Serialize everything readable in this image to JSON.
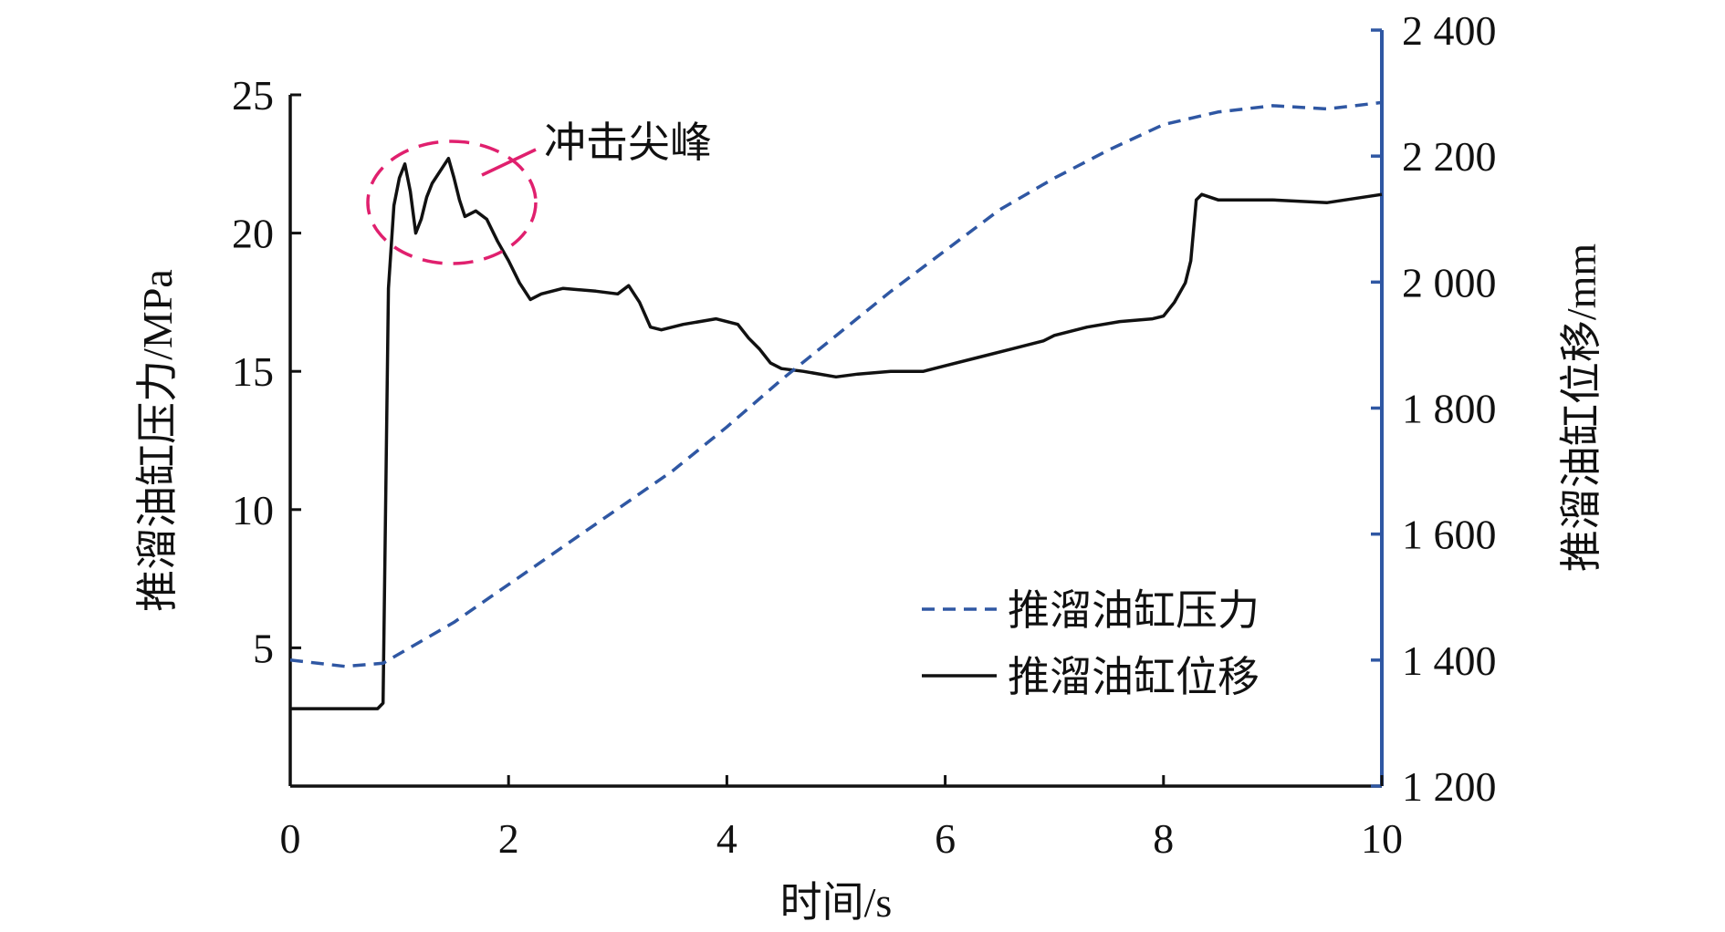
{
  "chart_data": {
    "type": "line",
    "xlabel": "时间/s",
    "ylabel_left": "推溜油缸压力/MPa",
    "ylabel_right": "推溜油缸位移/mm",
    "xlim": [
      0,
      10
    ],
    "ylim_left": [
      0,
      25
    ],
    "ylim_right": [
      1200,
      2400
    ],
    "x_ticks": [
      "0",
      "2",
      "4",
      "6",
      "8",
      "10"
    ],
    "y_ticks_left": [
      "5",
      "10",
      "15",
      "20",
      "25"
    ],
    "y_ticks_right": [
      "1 200",
      "1 400",
      "1 600",
      "1 800",
      "2 000",
      "2 200",
      "2 400"
    ],
    "grid": false,
    "legend_position": "lower-right",
    "annotation": "冲击尖峰",
    "colors": {
      "displacement": "#111111",
      "pressure": "#2F57A3",
      "annotation": "#E0206E",
      "right_axis": "#2F57A3"
    },
    "series": [
      {
        "name": "推溜油缸位移",
        "axis": "left",
        "style": "solid",
        "x": [
          0,
          0.4,
          0.75,
          0.8,
          0.85,
          0.9,
          0.95,
          1.0,
          1.05,
          1.1,
          1.15,
          1.2,
          1.25,
          1.3,
          1.4,
          1.45,
          1.5,
          1.55,
          1.6,
          1.7,
          1.8,
          1.9,
          2.0,
          2.1,
          2.2,
          2.3,
          2.5,
          2.8,
          3.0,
          3.1,
          3.2,
          3.3,
          3.4,
          3.6,
          3.9,
          4.1,
          4.2,
          4.3,
          4.4,
          4.5,
          4.7,
          5.0,
          5.2,
          5.5,
          5.8,
          6.0,
          6.3,
          6.6,
          6.9,
          7.0,
          7.3,
          7.6,
          7.9,
          8.0,
          8.1,
          8.2,
          8.25,
          8.3,
          8.35,
          8.5,
          9.0,
          9.5,
          10.0
        ],
        "y": [
          2.8,
          2.8,
          2.8,
          2.8,
          3.0,
          18.0,
          21.0,
          22.0,
          22.5,
          21.5,
          20.0,
          20.5,
          21.3,
          21.8,
          22.4,
          22.7,
          22.0,
          21.2,
          20.6,
          20.8,
          20.5,
          19.7,
          19.0,
          18.2,
          17.6,
          17.8,
          18.0,
          17.9,
          17.8,
          18.1,
          17.5,
          16.6,
          16.5,
          16.7,
          16.9,
          16.7,
          16.2,
          15.8,
          15.3,
          15.1,
          15.0,
          14.8,
          14.9,
          15.0,
          15.0,
          15.2,
          15.5,
          15.8,
          16.1,
          16.3,
          16.6,
          16.8,
          16.9,
          17.0,
          17.5,
          18.2,
          19.0,
          21.2,
          21.4,
          21.2,
          21.2,
          21.1,
          21.4
        ]
      },
      {
        "name": "推溜油缸压力",
        "axis": "right",
        "style": "dashed",
        "x": [
          0,
          0.5,
          0.85,
          1.0,
          1.5,
          2.0,
          2.5,
          3.0,
          3.5,
          4.0,
          4.5,
          5.0,
          5.5,
          6.0,
          6.5,
          7.0,
          7.5,
          8.0,
          8.5,
          9.0,
          9.5,
          10.0
        ],
        "y": [
          1400,
          1390,
          1395,
          1410,
          1460,
          1520,
          1580,
          1640,
          1700,
          1770,
          1845,
          1915,
          1985,
          2050,
          2115,
          2165,
          2210,
          2250,
          2270,
          2280,
          2275,
          2285
        ]
      }
    ]
  }
}
